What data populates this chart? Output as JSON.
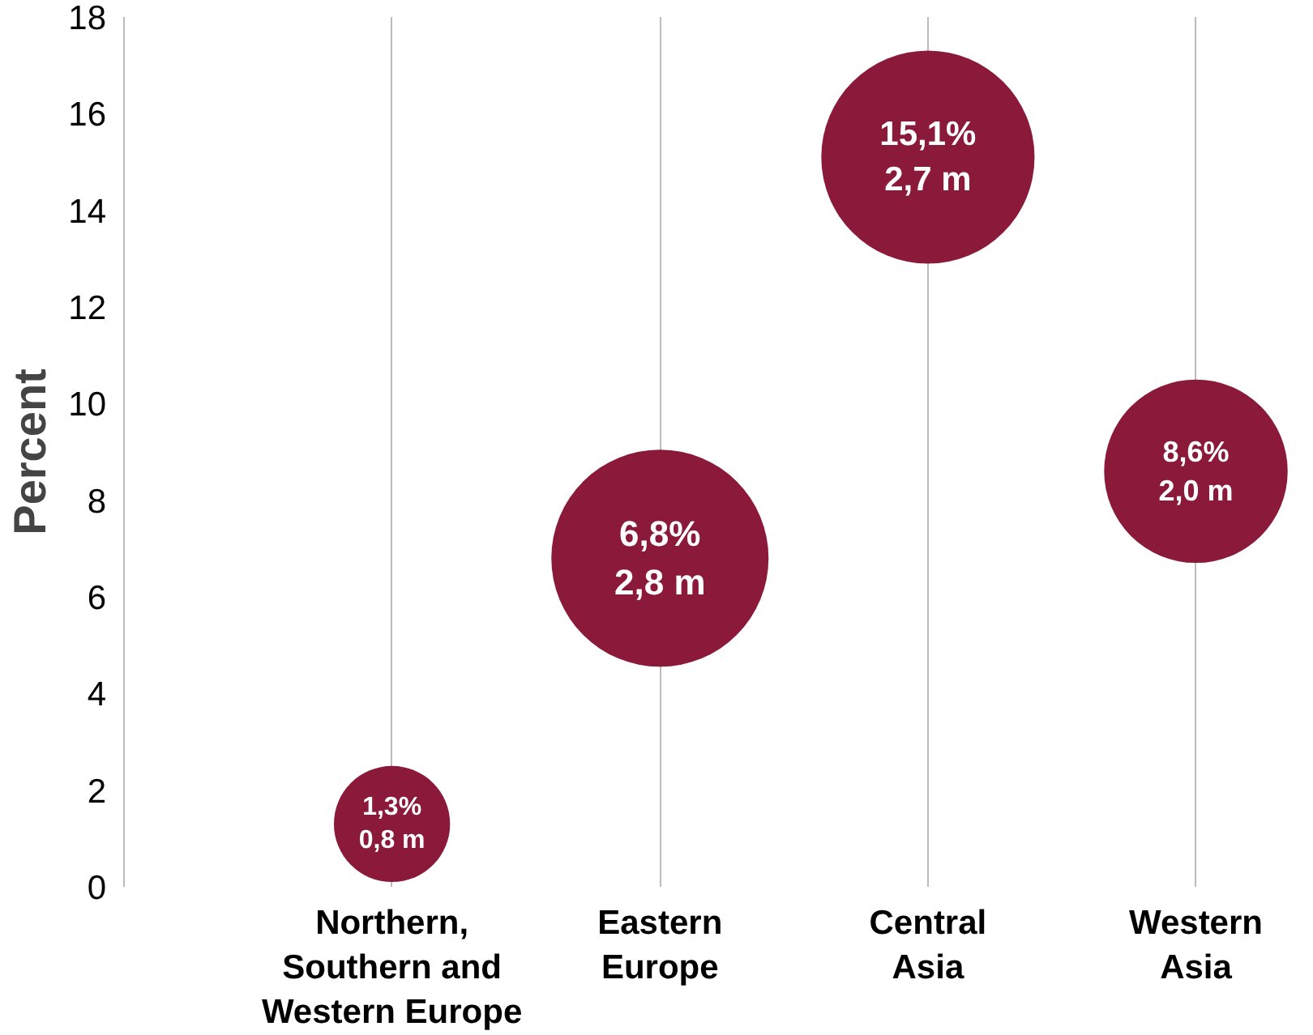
{
  "chart_data": {
    "type": "bubble",
    "ylabel": "Percent",
    "categories": [
      "Northern, Southern and Western Europe",
      "Eastern Europe",
      "Central Asia",
      "Western Asia"
    ],
    "values": [
      1.3,
      6.8,
      15.1,
      8.6
    ],
    "sizes": [
      0.286,
      1,
      0.964,
      0.714
    ],
    "value_labels": [
      "1,3%\n0,8 m",
      "6,8%\n2,8 m",
      "15,1%\n2,7 m",
      "8,6%\n2,0 m"
    ],
    "color": "#8b1a3a",
    "ylim": [
      0,
      18
    ],
    "yticks": [
      0,
      2,
      4,
      6,
      8,
      10,
      12,
      14,
      16,
      18
    ],
    "grid": "x"
  }
}
